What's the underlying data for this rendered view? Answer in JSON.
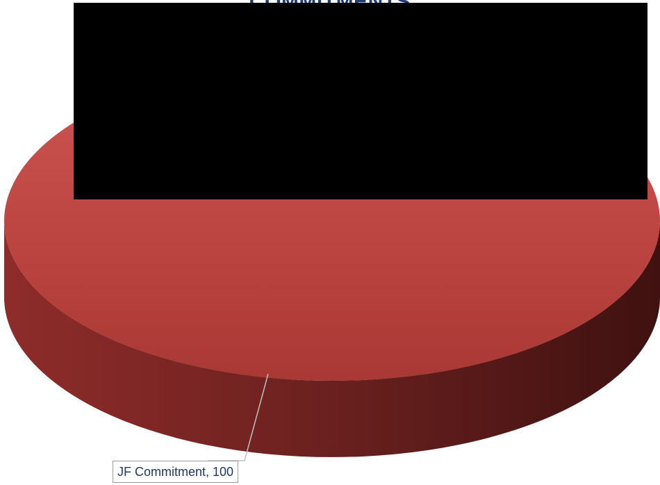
{
  "chart_data": {
    "type": "pie",
    "title": "COMMITMENTS",
    "slices": [
      {
        "label": "JF Commitment",
        "value": 100,
        "color": "#c0504d"
      }
    ],
    "data_label_text": "JF Commitment, 100",
    "style": "3d"
  },
  "redaction_color": "#000000"
}
